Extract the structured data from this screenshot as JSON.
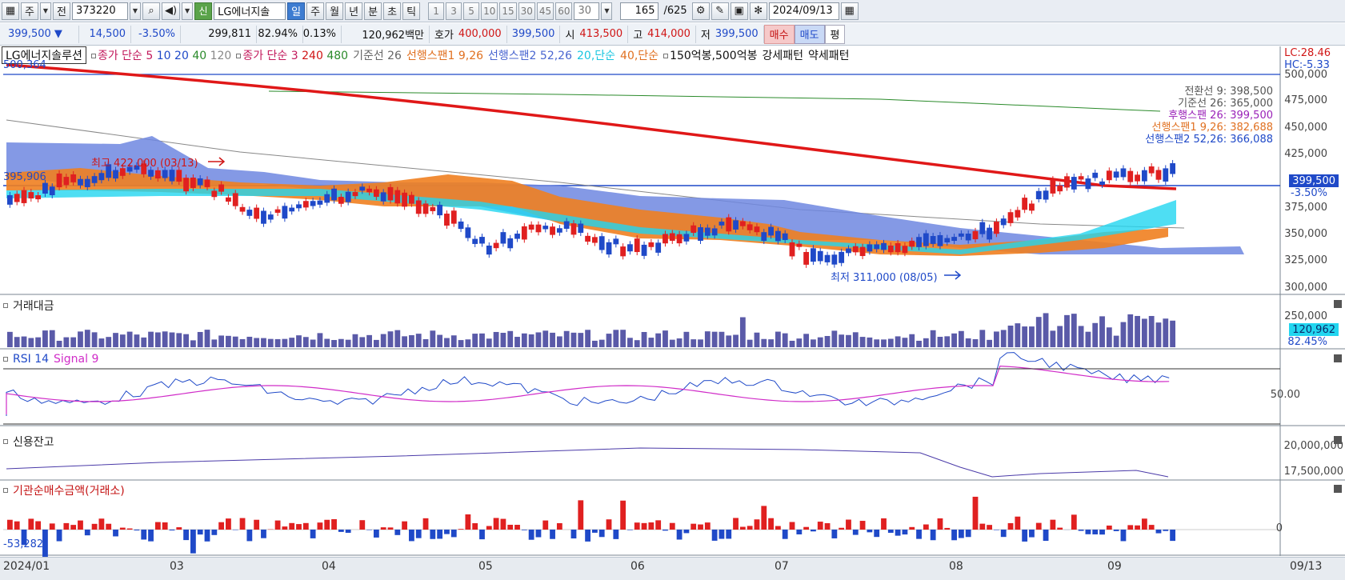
{
  "toolbar": {
    "period_main": "주",
    "prev_label": "전",
    "code": "373220",
    "search_icon": "search-icon",
    "volume_icon": "speaker-icon",
    "credit_badge": "신",
    "stock_name": "LG에너지솔",
    "periods": [
      "일",
      "주",
      "월",
      "년",
      "분",
      "초",
      "틱"
    ],
    "active_period": "일",
    "intervals": [
      "1",
      "3",
      "5",
      "10",
      "15",
      "30",
      "45",
      "60"
    ],
    "interval_input": "30",
    "count": "165",
    "count_total": "/625",
    "date": "2024/09/13"
  },
  "quote": {
    "price": "399,500",
    "arrow": "▼",
    "change": "14,500",
    "change_pct": "-3.50%",
    "volume": "299,811",
    "vol_ratio": "82.94%",
    "turnover_pct": "0.13%",
    "amount": "120,962백만",
    "ask_label": "호가",
    "ask": "400,000",
    "bid": "399,500",
    "open_label": "시",
    "open": "413,500",
    "high_label": "고",
    "high": "414,000",
    "low_label": "저",
    "low": "399,500",
    "buy_btn": "매수",
    "sell_btn": "매도",
    "eval_btn": "평"
  },
  "legend": {
    "stock": "LG에너지솔루션",
    "ma_label": "종가 단순",
    "ma": [
      "5",
      "10",
      "20",
      "40",
      "120"
    ],
    "ma2_label": "종가 단순",
    "ma2": [
      "3",
      "240",
      "480"
    ],
    "base": "기준선 26",
    "span1": "선행스팬1 9,26",
    "span2": "선행스팬2 52,26",
    "s20": "20,단순",
    "s40": "40,단순",
    "bong": "150억봉,500억봉",
    "strong": "강세패턴",
    "weak": "약세패턴"
  },
  "main_panel": {
    "lc": "LC:28.46",
    "hc": "HC:-5.33",
    "top_value": "500,364",
    "left_value": "395,906",
    "high_ann": "최고 422,000 (03/13)",
    "low_ann": "최저 311,000 (08/05)",
    "y_ticks": [
      "500,000",
      "475,000",
      "450,000",
      "425,000",
      "400,000",
      "375,000",
      "350,000",
      "325,000",
      "300,000"
    ],
    "current_tag": "399,500",
    "current_pct": "-3.50%",
    "ichimoku": [
      {
        "text": "전환선 9: 398,500",
        "color": "#555555"
      },
      {
        "text": "기준선 26: 365,000",
        "color": "#555555"
      },
      {
        "text": "후행스팬 26: 399,500",
        "color": "#9a22b8"
      },
      {
        "text": "선행스팬1 9,26: 382,688",
        "color": "#e07020"
      },
      {
        "text": "선행스팬2 52,26: 366,088",
        "color": "#1f49c8"
      }
    ]
  },
  "volume_panel": {
    "title": "거래대금",
    "tick": "250,000",
    "current": "120,962",
    "pct": "82.45%"
  },
  "rsi_panel": {
    "title": "RSI 14",
    "signal": "Signal 9",
    "tick": "50.00"
  },
  "credit_panel": {
    "title": "신용잔고",
    "ticks": [
      "20,000,000",
      "17,500,000"
    ]
  },
  "inst_panel": {
    "title": "기관순매수금액(거래소)",
    "tick": "0",
    "left_value": "-53,282"
  },
  "x_axis": {
    "labels": [
      "2024/01",
      "03",
      "04",
      "05",
      "06",
      "07",
      "08",
      "09"
    ],
    "right": "09/13"
  },
  "colors": {
    "up": "#e02020",
    "down": "#1f49c8",
    "ma240": "#e01818",
    "cloud_pos": "#f08020",
    "cloud_neg": "#6f87e0",
    "cyan": "#22d6f0",
    "volume_bar": "#5a5aa8"
  }
}
